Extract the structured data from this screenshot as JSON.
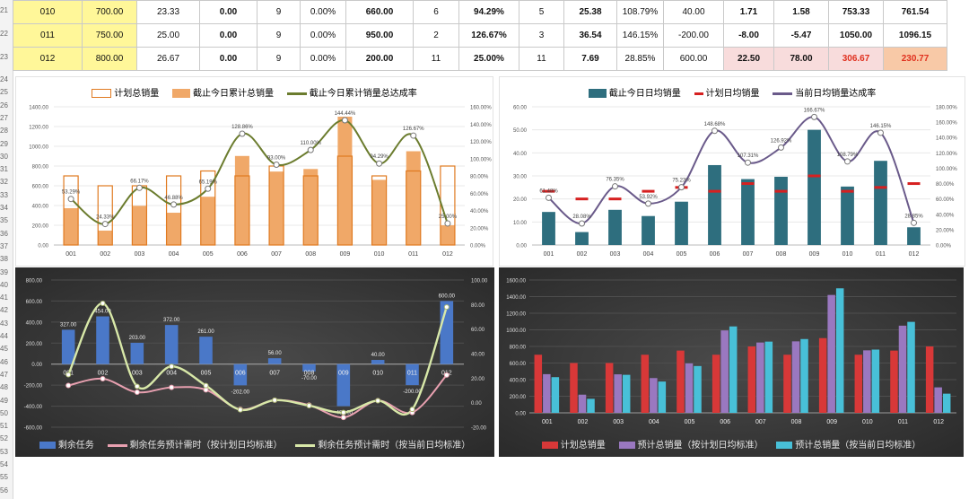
{
  "row_numbers": [
    "21",
    "22",
    "23",
    "24",
    "25",
    "26",
    "27",
    "28",
    "29",
    "30",
    "31",
    "32",
    "33",
    "34",
    "35",
    "36",
    "37",
    "38",
    "39",
    "40",
    "41",
    "42",
    "43",
    "44",
    "45",
    "46",
    "47",
    "48",
    "49",
    "50",
    "51",
    "52",
    "53",
    "54",
    "55",
    "56"
  ],
  "table": {
    "rows": [
      {
        "cells": [
          "010",
          "700.00",
          "23.33",
          "0.00",
          "9",
          "0.00%",
          "660.00",
          "6",
          "94.29%",
          "5",
          "25.38",
          "108.79%",
          "40.00",
          "1.71",
          "1.58",
          "753.33",
          "761.54"
        ]
      },
      {
        "cells": [
          "011",
          "750.00",
          "25.00",
          "0.00",
          "9",
          "0.00%",
          "950.00",
          "2",
          "126.67%",
          "3",
          "36.54",
          "146.15%",
          "-200.00",
          "-8.00",
          "-5.47",
          "1050.00",
          "1096.15"
        ]
      },
      {
        "cells": [
          "012",
          "800.00",
          "26.67",
          "0.00",
          "9",
          "0.00%",
          "200.00",
          "11",
          "25.00%",
          "11",
          "7.69",
          "28.85%",
          "600.00",
          "22.50",
          "78.00",
          "306.67",
          "230.77"
        ]
      }
    ]
  },
  "colors": {
    "yellow": "#fff799",
    "pink": "#f8dcdc",
    "salmon": "#f8c9a7",
    "red_text": "#e0301e",
    "orange": "#f0a868",
    "orange_border": "#e07a20",
    "olive": "#6b7c2e",
    "teal": "#2e6e7e",
    "purple": "#6a5a8a",
    "red_mark": "#d62020",
    "blue": "#4a78c8",
    "pink_line": "#e8a0b0",
    "pale_green": "#d8e8a8",
    "bar_red": "#d83838",
    "bar_purple": "#9a78c0",
    "bar_cyan": "#48c0d8"
  },
  "chart_data": [
    {
      "type": "bar",
      "categories": [
        "001",
        "002",
        "003",
        "004",
        "005",
        "006",
        "007",
        "008",
        "009",
        "010",
        "011",
        "012"
      ],
      "series": [
        {
          "name": "计划总销量",
          "kind": "bar-outline",
          "values": [
            700,
            600,
            600,
            700,
            750,
            700,
            800,
            700,
            900,
            700,
            750,
            800
          ]
        },
        {
          "name": "截止今日累计总销量",
          "kind": "bar",
          "values": [
            373,
            146,
            397,
            327,
            489,
            902,
            744,
            770,
            1300,
            660,
            950,
            200
          ]
        },
        {
          "name": "截止今日累计销量总达成率",
          "kind": "line",
          "axis": "right",
          "values": [
            53.29,
            24.33,
            66.17,
            46.88,
            65.19,
            128.86,
            93.0,
            110.0,
            144.44,
            94.29,
            126.67,
            25.0
          ]
        }
      ],
      "point_labels": [
        "53.29%",
        "24.33%",
        "66.17%",
        "46.88%",
        "65.19%",
        "128.86%",
        "93.00%",
        "110.00%",
        "144.44%",
        "94.29%",
        "126.67%",
        "25.00%"
      ],
      "left_ticks": [
        "1400.00",
        "1200.00",
        "1000.00",
        "800.00",
        "600.00",
        "400.00",
        "200.00",
        "0.00"
      ],
      "right_ticks": [
        "160.00%",
        "140.00%",
        "120.00%",
        "100.00%",
        "80.00%",
        "60.00%",
        "40.00%",
        "20.00%",
        "0.00%"
      ],
      "ylim": [
        0,
        1400
      ],
      "y2lim": [
        0,
        160
      ]
    },
    {
      "type": "bar",
      "categories": [
        "001",
        "002",
        "003",
        "004",
        "005",
        "006",
        "007",
        "008",
        "009",
        "010",
        "011",
        "012"
      ],
      "series": [
        {
          "name": "截止今日日均销量",
          "kind": "bar",
          "values": [
            14.35,
            5.62,
            15.27,
            12.58,
            18.81,
            34.69,
            28.62,
            29.62,
            50.0,
            25.38,
            36.54,
            7.69
          ]
        },
        {
          "name": "计划日均销量",
          "kind": "marker",
          "values": [
            23.33,
            20.0,
            20.0,
            23.33,
            25.0,
            23.33,
            26.67,
            23.33,
            30.0,
            23.33,
            25.0,
            26.67
          ]
        },
        {
          "name": "当前日均销量达成率",
          "kind": "line",
          "axis": "right",
          "values": [
            61.48,
            28.08,
            76.35,
            53.92,
            75.23,
            148.68,
            107.31,
            126.92,
            166.67,
            108.79,
            146.15,
            28.85
          ]
        }
      ],
      "point_labels": [
        "61.48%",
        "28.08%",
        "76.35%",
        "53.92%",
        "75.23%",
        "148.68%",
        "107.31%",
        "126.92%",
        "166.67%",
        "108.79%",
        "146.15%",
        "28.85%"
      ],
      "left_ticks": [
        "60.00",
        "50.00",
        "40.00",
        "30.00",
        "20.00",
        "10.00",
        "0.00"
      ],
      "right_ticks": [
        "180.00%",
        "160.00%",
        "140.00%",
        "120.00%",
        "100.00%",
        "80.00%",
        "60.00%",
        "40.00%",
        "20.00%",
        "0.00%"
      ],
      "ylim": [
        0,
        60
      ],
      "y2lim": [
        0,
        180
      ]
    },
    {
      "type": "bar",
      "categories": [
        "001",
        "002",
        "003",
        "004",
        "005",
        "006",
        "007",
        "008",
        "009",
        "010",
        "011",
        "012"
      ],
      "series": [
        {
          "name": "剩余任务",
          "kind": "bar",
          "values": [
            327,
            454,
            203,
            372,
            261,
            -202,
            56,
            -70,
            -400,
            40,
            -200,
            600
          ]
        },
        {
          "name": "剩余任务预计需时（按计划日均标准）",
          "kind": "line",
          "axis": "right",
          "values": [
            14.0,
            19.5,
            8.5,
            12.5,
            10.5,
            -5.5,
            2.0,
            -2.0,
            -12.0,
            1.7,
            -8.0,
            22.5
          ]
        },
        {
          "name": "剩余任务预计需时（按当前日均标准）",
          "kind": "line",
          "axis": "right",
          "values": [
            22.8,
            81.0,
            13.3,
            29.6,
            13.9,
            -5.8,
            2.0,
            -2.4,
            -8.0,
            1.6,
            -5.5,
            78.0
          ]
        }
      ],
      "bar_labels": [
        "327.00",
        "454.00",
        "203.00",
        "372.00",
        "261.00",
        "-202.00",
        "56.00",
        "-70.00",
        "-400.00",
        "40.00",
        "-200.00",
        "600.00"
      ],
      "left_ticks": [
        "800.00",
        "600.00",
        "400.00",
        "200.00",
        "0.00",
        "-200.00",
        "-400.00",
        "-600.00"
      ],
      "right_ticks": [
        "100.00",
        "80.00",
        "60.00",
        "40.00",
        "20.00",
        "0.00",
        "-20.00"
      ],
      "ylim": [
        -600,
        800
      ],
      "y2lim": [
        -20,
        100
      ]
    },
    {
      "type": "bar",
      "categories": [
        "001",
        "002",
        "003",
        "004",
        "005",
        "006",
        "007",
        "008",
        "009",
        "010",
        "011",
        "012"
      ],
      "series": [
        {
          "name": "计划总销量",
          "values": [
            700,
            600,
            600,
            700,
            750,
            700,
            800,
            700,
            900,
            700,
            750,
            800
          ]
        },
        {
          "name": "预计总销量（按计划日均标准）",
          "values": [
            466,
            219,
            464,
            419,
            596,
            993,
            847,
            861,
            1420,
            753,
            1050,
            307
          ]
        },
        {
          "name": "预计总销量（按当前日均标准）",
          "values": [
            430,
            169,
            458,
            377,
            564,
            1041,
            858,
            889,
            1500,
            762,
            1096,
            231
          ]
        }
      ],
      "left_ticks": [
        "1600.00",
        "1400.00",
        "1200.00",
        "1000.00",
        "800.00",
        "600.00",
        "400.00",
        "200.00",
        "0.00"
      ],
      "ylim": [
        0,
        1600
      ]
    }
  ]
}
